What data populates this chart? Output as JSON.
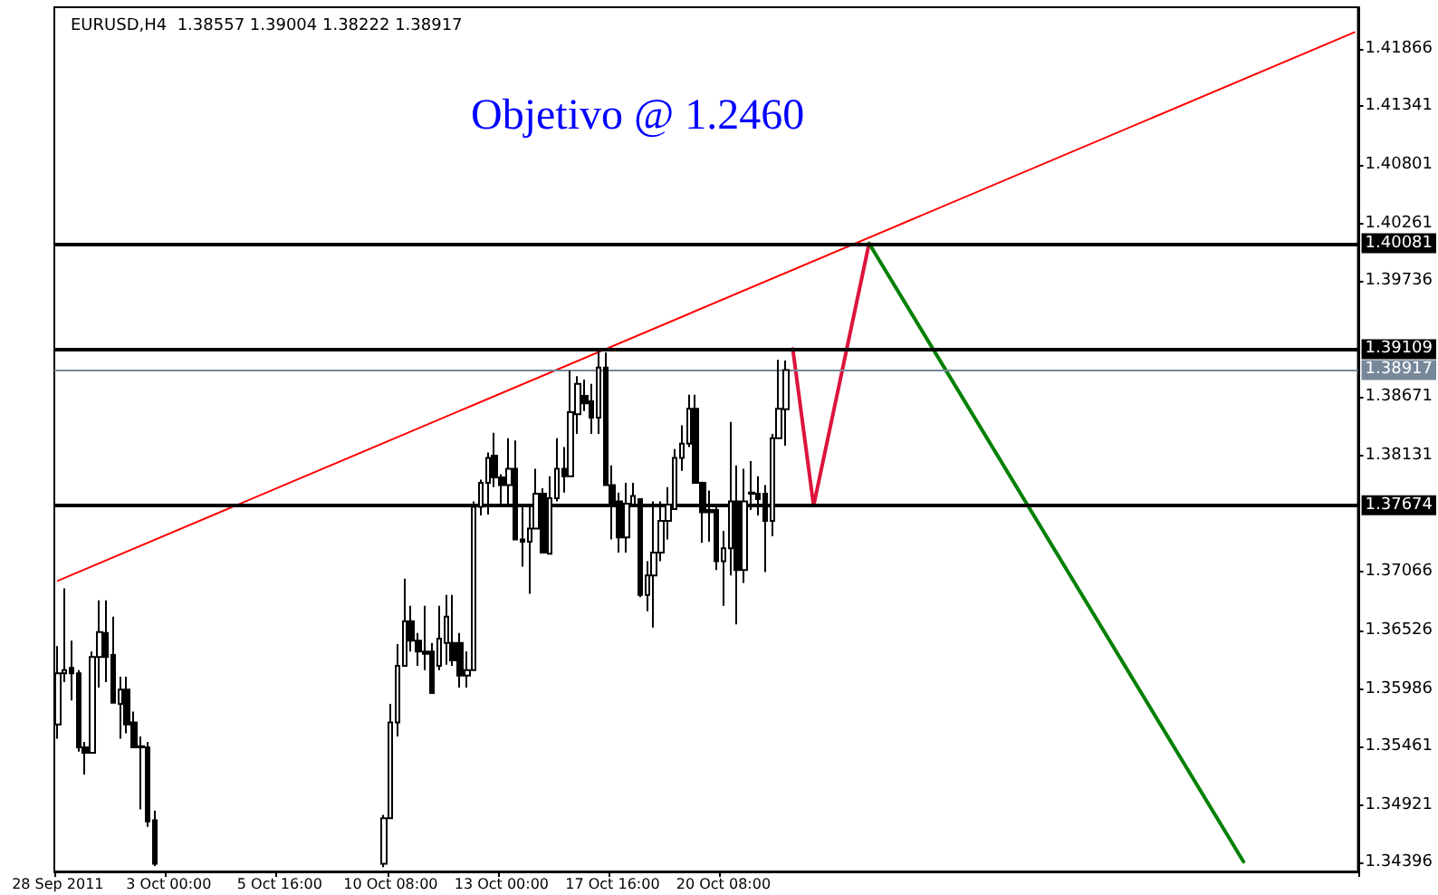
{
  "chart_data": {
    "type": "candlestick",
    "title": "EURUSD,H4  1.38557 1.39004 1.38222 1.38917",
    "annotations": [
      "Objetivo @ 1.2460"
    ],
    "color": "#000000",
    "categories": [
      "28 Sep 2011",
      null,
      null,
      null,
      null,
      null,
      null,
      null,
      null,
      null,
      null,
      null,
      null,
      null,
      null,
      null,
      "3 Oct 00:00",
      null,
      null,
      null,
      null,
      null,
      null,
      null,
      null,
      null,
      null,
      null,
      null,
      null,
      null,
      null,
      "5 Oct 16:00",
      null,
      null,
      null,
      null,
      null,
      null,
      null,
      null,
      null,
      null,
      null,
      null,
      null,
      null,
      null,
      "10 Oct 08:00",
      null,
      null,
      null,
      null,
      null,
      null,
      null,
      null,
      null,
      null,
      null,
      null,
      null,
      null,
      null,
      "13 Oct 00:00",
      null,
      null,
      null,
      null,
      null,
      null,
      null,
      null,
      null,
      null,
      null,
      null,
      null,
      null,
      null,
      "17 Oct 16:00",
      null,
      null,
      null,
      null,
      null,
      null,
      null,
      null,
      null,
      null,
      null,
      null,
      null,
      null,
      null,
      "20 Oct 08:00",
      null,
      null,
      null,
      null,
      null,
      null,
      null,
      null,
      null,
      null,
      null,
      null,
      null,
      null,
      null,
      null,
      null,
      null,
      null,
      null,
      null,
      null,
      null,
      null,
      null,
      null,
      null,
      null,
      null,
      null,
      null,
      null,
      null,
      null,
      null,
      null,
      null,
      null,
      null,
      null,
      null,
      null,
      null,
      null,
      null,
      null,
      null,
      null,
      null,
      null,
      null,
      null,
      null,
      null,
      null,
      null,
      null,
      null,
      null,
      null,
      null,
      null,
      null,
      null,
      null,
      null,
      null,
      null,
      null,
      null,
      null,
      null,
      null,
      null,
      null,
      null,
      null,
      null,
      null,
      null,
      null,
      null,
      null,
      null,
      null,
      null,
      null,
      null,
      null,
      null,
      null
    ],
    "ohlc": [
      [
        1.3566,
        1.3638,
        1.3553,
        1.3613
      ],
      [
        1.3613,
        1.3691,
        1.3605,
        1.3616
      ],
      [
        1.3618,
        1.3643,
        1.3588,
        1.3613
      ],
      [
        1.3613,
        1.3616,
        1.3541,
        1.3545
      ],
      [
        1.3545,
        1.355,
        1.352,
        1.354
      ],
      [
        1.354,
        1.3633,
        1.354,
        1.3628
      ],
      [
        1.3628,
        1.368,
        1.36,
        1.3651
      ],
      [
        1.365,
        1.368,
        1.3605,
        1.3628
      ],
      [
        1.363,
        1.3665,
        1.3586,
        1.3586
      ],
      [
        1.3585,
        1.361,
        1.3553,
        1.3598
      ],
      [
        1.3598,
        1.361,
        1.3558,
        1.3566
      ],
      [
        1.3568,
        1.3578,
        1.3545,
        1.3545
      ],
      [
        1.3546,
        1.3555,
        1.3488,
        1.3545
      ],
      [
        1.3545,
        1.355,
        1.3472,
        1.3477
      ],
      [
        1.3478,
        1.3487,
        1.3436,
        1.3438
      ],
      null,
      null,
      null,
      null,
      null,
      null,
      null,
      null,
      null,
      null,
      null,
      null,
      null,
      null,
      null,
      null,
      null,
      null,
      null,
      null,
      null,
      null,
      null,
      null,
      null,
      null,
      null,
      null,
      null,
      null,
      null,
      null,
      [
        1.3438,
        1.3483,
        1.3435,
        1.348
      ],
      [
        1.348,
        1.3585,
        1.348,
        1.3568
      ],
      [
        1.3568,
        1.364,
        1.3555,
        1.362
      ],
      [
        1.362,
        1.37,
        1.362,
        1.3661
      ],
      [
        1.3661,
        1.3675,
        1.3633,
        1.3643
      ],
      [
        1.3643,
        1.365,
        1.362,
        1.3633
      ],
      [
        1.3633,
        1.3675,
        1.3616,
        1.3631
      ],
      [
        1.3633,
        1.3641,
        1.3595,
        1.3595
      ],
      [
        1.362,
        1.3675,
        1.3616,
        1.3645
      ],
      [
        1.3641,
        1.3685,
        1.3621,
        1.3665
      ],
      [
        1.3641,
        1.3685,
        1.362,
        1.3625
      ],
      [
        1.3641,
        1.365,
        1.36,
        1.3611
      ],
      [
        1.3611,
        1.3633,
        1.36,
        1.3616
      ],
      [
        1.3616,
        1.3771,
        1.3616,
        1.3766
      ],
      [
        1.3766,
        1.3791,
        1.3758,
        1.3788
      ],
      [
        1.3788,
        1.3816,
        1.3759,
        1.3811
      ],
      [
        1.3813,
        1.3834,
        1.3784,
        1.3793
      ],
      [
        1.3793,
        1.3796,
        1.3768,
        1.3786
      ],
      [
        1.3786,
        1.3829,
        1.3768,
        1.3801
      ],
      [
        1.3801,
        1.3827,
        1.3736,
        1.3736
      ],
      [
        1.3736,
        1.3766,
        1.3711,
        1.3734
      ],
      [
        1.3734,
        1.3766,
        1.3686,
        1.3746
      ],
      [
        1.3746,
        1.3801,
        1.3746,
        1.3778
      ],
      [
        1.3778,
        1.3783,
        1.3724,
        1.3724
      ],
      [
        1.3723,
        1.3794,
        1.3723,
        1.3774
      ],
      [
        1.3774,
        1.3829,
        1.3771,
        1.3801
      ],
      [
        1.3801,
        1.3821,
        1.3779,
        1.3794
      ],
      [
        1.3794,
        1.3891,
        1.3794,
        1.3853
      ],
      [
        1.3851,
        1.3886,
        1.3833,
        1.3879
      ],
      [
        1.3868,
        1.3883,
        1.3854,
        1.3861
      ],
      [
        1.3863,
        1.3879,
        1.3833,
        1.3848
      ],
      [
        1.3848,
        1.3911,
        1.3833,
        1.3894
      ],
      [
        1.3894,
        1.3908,
        1.3786,
        1.3786
      ],
      [
        1.3786,
        1.3804,
        1.3736,
        1.3769
      ],
      [
        1.3771,
        1.3779,
        1.3724,
        1.3738
      ],
      [
        1.3738,
        1.3788,
        1.3724,
        1.3769
      ],
      [
        1.3768,
        1.3788,
        1.3766,
        1.3776
      ],
      [
        1.3773,
        1.3773,
        1.3683,
        1.3685
      ],
      [
        1.3685,
        1.3716,
        1.367,
        1.3703
      ],
      [
        1.3703,
        1.3771,
        1.3655,
        1.3724
      ],
      [
        1.3724,
        1.3771,
        1.3716,
        1.3753
      ],
      [
        1.3753,
        1.3784,
        1.3736,
        1.3768
      ],
      [
        1.3764,
        1.3819,
        1.3763,
        1.3811
      ],
      [
        1.3811,
        1.3841,
        1.3799,
        1.3824
      ],
      [
        1.3824,
        1.3869,
        1.3821,
        1.3856
      ],
      [
        1.3856,
        1.3869,
        1.3788,
        1.3788
      ],
      [
        1.3788,
        1.3789,
        1.3733,
        1.3761
      ],
      [
        1.3763,
        1.3781,
        1.3734,
        1.3761
      ],
      [
        1.3763,
        1.3766,
        1.3708,
        1.3716
      ],
      [
        1.3716,
        1.3744,
        1.3675,
        1.3728
      ],
      [
        1.3728,
        1.3844,
        1.3703,
        1.3771
      ],
      [
        1.3771,
        1.3804,
        1.3658,
        1.3708
      ],
      [
        1.3708,
        1.3801,
        1.3696,
        1.3771
      ],
      [
        1.3779,
        1.3808,
        1.3763,
        1.3778
      ],
      [
        1.3778,
        1.3794,
        1.3758,
        1.3773
      ],
      [
        1.3778,
        1.3786,
        1.3706,
        1.3753
      ],
      [
        1.3753,
        1.3833,
        1.3739,
        1.3829
      ],
      [
        1.3829,
        1.3901,
        1.3829,
        1.3856
      ],
      [
        1.38557,
        1.39004,
        1.38222,
        1.38917
      ],
      null,
      null,
      null,
      null,
      null,
      null,
      null,
      null,
      null,
      null,
      null,
      null,
      null,
      null,
      null,
      null,
      null,
      null,
      null,
      null,
      null,
      null,
      null,
      null,
      null,
      null,
      null,
      null,
      null,
      null,
      null,
      null,
      null,
      null,
      null,
      null,
      null,
      null,
      null,
      null,
      null,
      null,
      null,
      null,
      null,
      null,
      null,
      null,
      null,
      null,
      null,
      null,
      null,
      null,
      null,
      null,
      null,
      null,
      null,
      null,
      null,
      null,
      null,
      null,
      null,
      null,
      null,
      null,
      null,
      null,
      null,
      null,
      null,
      null,
      null,
      null,
      null,
      null,
      null,
      null,
      null,
      null
    ],
    "series": [
      {
        "type": "line",
        "color": "#ff0000",
        "values": [
          1.3698,
          null,
          null,
          null,
          null,
          null,
          null,
          null,
          null,
          null,
          null,
          null,
          null,
          null,
          null,
          null,
          null,
          null,
          null,
          null,
          null,
          null,
          null,
          null,
          null,
          null,
          null,
          null,
          null,
          null,
          null,
          null,
          null,
          null,
          null,
          null,
          null,
          null,
          null,
          null,
          null,
          null,
          null,
          null,
          null,
          null,
          null,
          null,
          null,
          null,
          null,
          null,
          null,
          null,
          null,
          null,
          null,
          null,
          null,
          null,
          null,
          null,
          null,
          null,
          null,
          null,
          null,
          null,
          null,
          null,
          null,
          null,
          null,
          null,
          null,
          null,
          null,
          null,
          null,
          null,
          null,
          null,
          null,
          null,
          null,
          null,
          null,
          null,
          null,
          null,
          null,
          null,
          null,
          null,
          null,
          null,
          null,
          null,
          null,
          null,
          null,
          null,
          null,
          null,
          null,
          null,
          null,
          null,
          null,
          null,
          null,
          null,
          null,
          null,
          null,
          null,
          null,
          null,
          null,
          null,
          null,
          null,
          null,
          null,
          null,
          null,
          null,
          null,
          null,
          null,
          null,
          null,
          null,
          null,
          null,
          null,
          null,
          null,
          null,
          null,
          null,
          null,
          null,
          null,
          null,
          null,
          null,
          null,
          null,
          null,
          null,
          null,
          null,
          null,
          null,
          null,
          null,
          null,
          null,
          null,
          null,
          null,
          null,
          null,
          null,
          null,
          null,
          null,
          null,
          null,
          null,
          null,
          null,
          null,
          null,
          null,
          null,
          null,
          null,
          null,
          null,
          null,
          null,
          null,
          null,
          null,
          null,
          1.4202
        ]
      },
      {
        "type": "line",
        "color": "#dc143c",
        "values": [
          null,
          null,
          null,
          null,
          null,
          null,
          null,
          null,
          null,
          null,
          null,
          null,
          null,
          null,
          null,
          null,
          null,
          null,
          null,
          null,
          null,
          null,
          null,
          null,
          null,
          null,
          null,
          null,
          null,
          null,
          null,
          null,
          null,
          null,
          null,
          null,
          null,
          null,
          null,
          null,
          null,
          null,
          null,
          null,
          null,
          null,
          null,
          null,
          null,
          null,
          null,
          null,
          null,
          null,
          null,
          null,
          null,
          null,
          null,
          null,
          null,
          null,
          null,
          null,
          null,
          null,
          null,
          null,
          null,
          null,
          null,
          null,
          null,
          null,
          null,
          null,
          null,
          null,
          null,
          null,
          null,
          null,
          null,
          null,
          null,
          null,
          null,
          null,
          null,
          null,
          null,
          null,
          null,
          null,
          null,
          null,
          null,
          null,
          null,
          null,
          null,
          null,
          null,
          null,
          null,
          null,
          1.3911,
          null,
          null,
          1.3767,
          null,
          null,
          null,
          null,
          null,
          null,
          null,
          1.4008,
          null,
          null,
          null,
          null,
          null,
          null,
          null,
          null,
          null,
          null,
          null,
          null,
          null,
          null,
          null,
          null,
          null,
          null,
          null,
          null,
          null,
          null,
          null,
          null,
          null,
          null,
          null,
          null,
          null,
          null,
          null,
          null,
          null,
          null,
          null,
          null,
          null,
          null,
          null,
          null,
          null,
          null,
          null,
          null,
          null,
          null,
          null,
          null,
          null,
          null,
          null,
          null,
          null,
          null,
          null,
          null,
          null,
          null,
          null,
          null,
          null,
          null,
          null,
          null,
          null,
          null,
          null,
          null,
          null,
          null
        ]
      },
      {
        "type": "line",
        "color": "#008000",
        "values": [
          null,
          null,
          null,
          null,
          null,
          null,
          null,
          null,
          null,
          null,
          null,
          null,
          null,
          null,
          null,
          null,
          null,
          null,
          null,
          null,
          null,
          null,
          null,
          null,
          null,
          null,
          null,
          null,
          null,
          null,
          null,
          null,
          null,
          null,
          null,
          null,
          null,
          null,
          null,
          null,
          null,
          null,
          null,
          null,
          null,
          null,
          null,
          null,
          null,
          null,
          null,
          null,
          null,
          null,
          null,
          null,
          null,
          null,
          null,
          null,
          null,
          null,
          null,
          null,
          null,
          null,
          null,
          null,
          null,
          null,
          null,
          null,
          null,
          null,
          null,
          null,
          null,
          null,
          null,
          null,
          null,
          null,
          null,
          null,
          null,
          null,
          null,
          null,
          null,
          null,
          null,
          null,
          null,
          null,
          null,
          null,
          null,
          null,
          null,
          null,
          null,
          null,
          null,
          null,
          null,
          null,
          null,
          null,
          null,
          null,
          null,
          null,
          null,
          null,
          null,
          null,
          null,
          1.4008,
          null,
          null,
          null,
          null,
          null,
          null,
          null,
          null,
          null,
          null,
          null,
          null,
          null,
          null,
          null,
          null,
          null,
          null,
          null,
          null,
          null,
          null,
          null,
          null,
          null,
          null,
          null,
          null,
          null,
          null,
          null,
          null,
          null,
          null,
          null,
          null,
          null,
          null,
          null,
          null,
          null,
          null,
          null,
          null,
          null,
          null,
          null,
          null,
          null,
          null,
          null,
          null,
          null,
          1.344,
          null,
          null,
          null,
          null,
          null,
          null,
          null,
          null,
          null,
          null,
          null,
          null,
          null,
          null,
          null,
          null
        ]
      }
    ],
    "ylim": [
      1.3431,
      1.4225
    ],
    "yticks": [
      1.41866,
      1.41341,
      1.40801,
      1.40261,
      1.39736,
      1.38671,
      1.38131,
      1.37066,
      1.36526,
      1.35986,
      1.35461,
      1.34921,
      1.34396
    ],
    "ref_lines": [
      {
        "axis": "y",
        "value": 1.40081,
        "label": "1.40081",
        "color": "#000000"
      },
      {
        "axis": "y",
        "value": 1.39109,
        "label": "1.39109",
        "color": "#000000"
      },
      {
        "axis": "y",
        "value": 1.38917,
        "label": "1.38917",
        "color": "#778899"
      },
      {
        "axis": "y",
        "value": 1.37674,
        "label": "1.37674",
        "color": "#000000"
      }
    ]
  }
}
